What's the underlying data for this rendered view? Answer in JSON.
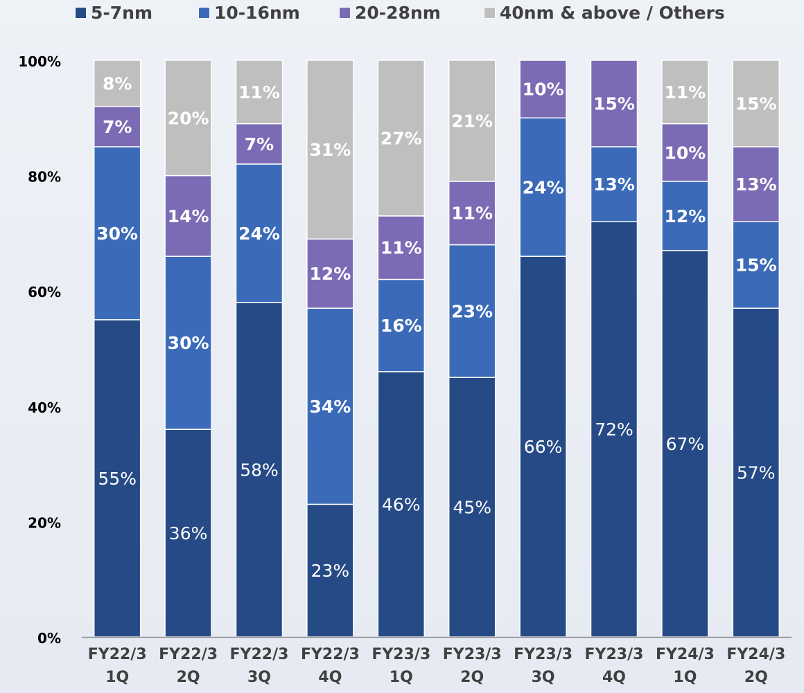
{
  "chart_data": {
    "type": "bar",
    "stacked": true,
    "title": "",
    "xlabel": "",
    "ylabel": "",
    "ylim": [
      0,
      100
    ],
    "yticks": [
      "0%",
      "20%",
      "40%",
      "60%",
      "80%",
      "100%"
    ],
    "categories": [
      [
        "FY22/3",
        "1Q"
      ],
      [
        "FY22/3",
        "2Q"
      ],
      [
        "FY22/3",
        "3Q"
      ],
      [
        "FY22/3",
        "4Q"
      ],
      [
        "FY23/3",
        "1Q"
      ],
      [
        "FY23/3",
        "2Q"
      ],
      [
        "FY23/3",
        "3Q"
      ],
      [
        "FY23/3",
        "4Q"
      ],
      [
        "FY24/3",
        "1Q"
      ],
      [
        "FY24/3",
        "2Q"
      ]
    ],
    "legend_position": "top",
    "grid": false,
    "series": [
      {
        "name": "5-7nm",
        "color": "#264a86",
        "values": [
          55,
          36,
          58,
          23,
          46,
          45,
          66,
          72,
          67,
          57
        ],
        "labels": [
          "55%",
          "36%",
          "58%",
          "23%",
          "46%",
          "45%",
          "66%",
          "72%",
          "67%",
          "57%"
        ],
        "label_weight": "normal"
      },
      {
        "name": "10-16nm",
        "color": "#3b6bb8",
        "values": [
          30,
          30,
          24,
          34,
          16,
          23,
          24,
          13,
          12,
          15
        ],
        "labels": [
          "30%",
          "30%",
          "24%",
          "34%",
          "16%",
          "23%",
          "24%",
          "13%",
          "12%",
          "15%"
        ],
        "label_weight": "bold"
      },
      {
        "name": "20-28nm",
        "color": "#7b6bb4",
        "values": [
          7,
          14,
          7,
          12,
          11,
          11,
          10,
          15,
          10,
          13
        ],
        "labels": [
          "7%",
          "14%",
          "7%",
          "12%",
          "11%",
          "11%",
          "10%",
          "15%",
          "10%",
          "13%"
        ],
        "label_weight": "bold"
      },
      {
        "name": "40nm & above / Others",
        "color": "#bfbfbf",
        "values": [
          8,
          20,
          11,
          31,
          27,
          21,
          0,
          0,
          11,
          15
        ],
        "labels": [
          "8%",
          "20%",
          "11%",
          "31%",
          "27%",
          "21%",
          "",
          "",
          "11%",
          "15%"
        ],
        "label_weight": "bold"
      }
    ]
  }
}
